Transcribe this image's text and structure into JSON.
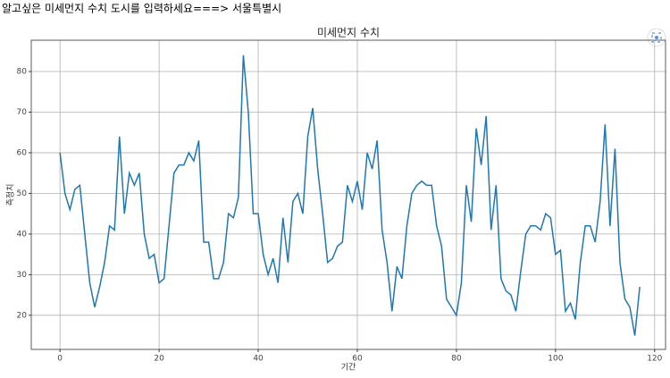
{
  "prompt": "알고싶은 미세먼지 수치 도시를 입력하세요===> 서울특별시",
  "chart_data": {
    "type": "line",
    "title": "미세먼지 수치",
    "x_label": "기간",
    "y_label": "측정치",
    "x": [
      0,
      1,
      2,
      3,
      4,
      5,
      6,
      7,
      8,
      9,
      10,
      11,
      12,
      13,
      14,
      15,
      16,
      17,
      18,
      19,
      20,
      21,
      22,
      23,
      24,
      25,
      26,
      27,
      28,
      29,
      30,
      31,
      32,
      33,
      34,
      35,
      36,
      37,
      38,
      39,
      40,
      41,
      42,
      43,
      44,
      45,
      46,
      47,
      48,
      49,
      50,
      51,
      52,
      53,
      54,
      55,
      56,
      57,
      58,
      59,
      60,
      61,
      62,
      63,
      64,
      65,
      66,
      67,
      68,
      69,
      70,
      71,
      72,
      73,
      74,
      75,
      76,
      77,
      78,
      79,
      80,
      81,
      82,
      83,
      84,
      85,
      86,
      87,
      88,
      89,
      90,
      91,
      92,
      93,
      94,
      95,
      96,
      97,
      98,
      99,
      100,
      101,
      102,
      103,
      104,
      105,
      106,
      107,
      108,
      109,
      110,
      111,
      112,
      113,
      114,
      115,
      116,
      117
    ],
    "series": [
      {
        "color": "#1f77b4",
        "values": [
          60,
          50,
          46,
          51,
          52,
          40,
          28,
          22,
          27,
          33,
          42,
          41,
          64,
          45,
          55,
          52,
          55,
          40,
          34,
          35,
          28,
          29,
          42,
          55,
          57,
          57,
          60,
          58,
          63,
          38,
          38,
          29,
          29,
          33,
          45,
          44,
          49,
          84,
          70,
          45,
          45,
          35,
          30,
          34,
          28,
          44,
          33,
          48,
          50,
          45,
          64,
          71,
          56,
          45,
          33,
          34,
          37,
          38,
          52,
          48,
          53,
          46,
          60,
          56,
          63,
          41,
          33,
          21,
          32,
          29,
          42,
          50,
          52,
          53,
          52,
          52,
          42,
          37,
          24,
          22,
          20,
          28,
          52,
          43,
          66,
          57,
          69,
          41,
          52,
          29,
          26,
          25,
          21,
          31,
          40,
          42,
          42,
          41,
          45,
          44,
          35,
          36,
          21,
          23,
          19,
          33,
          42,
          42,
          38,
          48,
          67,
          42,
          61,
          33,
          24,
          22,
          15,
          27
        ]
      }
    ],
    "xlim": [
      -5.8,
      122.2
    ],
    "ylim": [
      11.6,
      87.7
    ],
    "xticks": [
      0,
      20,
      40,
      60,
      80,
      100,
      120
    ],
    "yticks": [
      20,
      30,
      40,
      50,
      60,
      70,
      80
    ],
    "grid": true
  }
}
